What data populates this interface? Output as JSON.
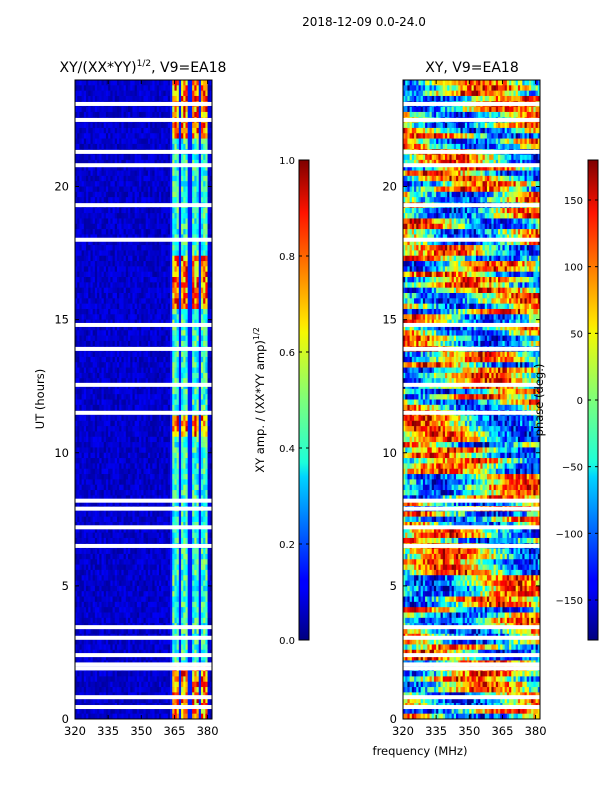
{
  "chart_data": {
    "type": "heatmap",
    "suptitle": "2018-12-09 0.0-24.0",
    "shared_xlabel": "frequency (MHz)",
    "panels": [
      {
        "title_main": "XY/(XX*YY)",
        "title_exp": "1/2",
        "title_suffix": ", V9=EA18",
        "ylabel": "UT (hours)",
        "xlim": [
          320,
          382
        ],
        "ylim": [
          0,
          24
        ],
        "xticks": [
          320,
          335,
          350,
          365,
          380
        ],
        "yticks": [
          0,
          5,
          10,
          15,
          20
        ],
        "colormap": "jet",
        "colorbar": {
          "label_main": "XY amp. / (XX*YY amp)",
          "label_exp": "1/2",
          "range": [
            0.0,
            1.0
          ],
          "ticks": [
            "0.0",
            "0.2",
            "0.4",
            "0.6",
            "0.8",
            "1.0"
          ]
        },
        "signal_band_mhz": [
          363,
          380
        ],
        "blank_ut_hours": [
          0.45,
          0.82,
          1.9,
          2.05,
          2.4,
          3.05,
          3.45,
          6.5,
          7.2,
          7.9,
          8.2,
          11.5,
          12.55,
          13.9,
          14.8,
          18.0,
          19.3,
          20.8,
          21.3,
          22.5,
          23.1
        ]
      },
      {
        "title_main": "XY, V9=EA18",
        "xlim": [
          320,
          382
        ],
        "ylim": [
          0,
          24
        ],
        "xticks": [
          320,
          335,
          350,
          365,
          380
        ],
        "yticks": [
          0,
          5,
          10,
          15,
          20
        ],
        "colormap": "jet",
        "colorbar": {
          "label": "phase (deg.)",
          "range": [
            -180,
            180
          ],
          "ticks": [
            "−150",
            "−100",
            "−50",
            "0",
            "50",
            "100",
            "150"
          ]
        },
        "blank_ut_hours": [
          0.45,
          0.82,
          1.9,
          2.05,
          2.4,
          3.05,
          3.45,
          6.5,
          7.2,
          7.9,
          8.2,
          11.5,
          12.55,
          13.9,
          14.8,
          18.0,
          19.3,
          20.8,
          21.3,
          22.5,
          23.1
        ]
      }
    ]
  }
}
